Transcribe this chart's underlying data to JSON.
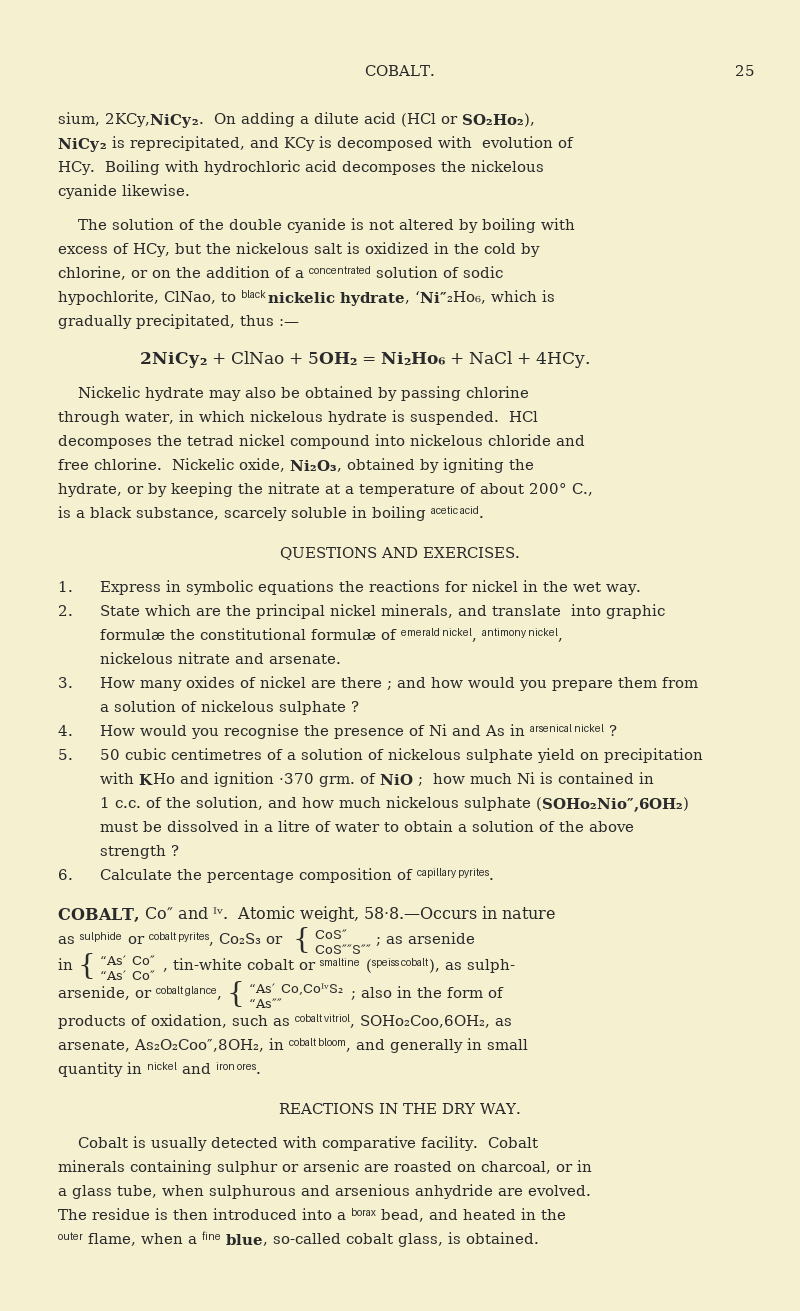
{
  "background_color": "#f5f0d0",
  "text_color": "#2a2a2a",
  "page_width": 8.0,
  "page_height": 13.11,
  "dpi": 100
}
